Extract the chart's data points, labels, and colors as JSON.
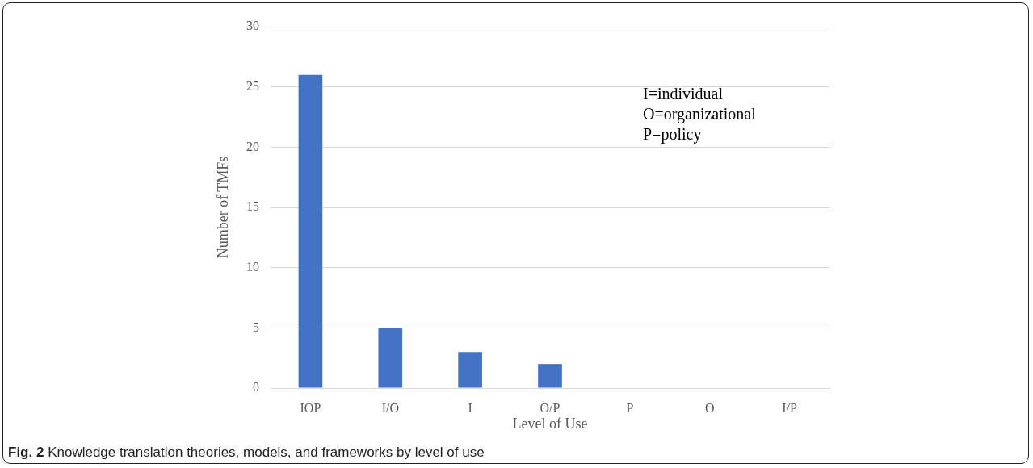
{
  "chart_data": {
    "type": "bar",
    "xlabel": "Level of Use",
    "ylabel": "Number of TMFs",
    "categories": [
      "IOP",
      "I/O",
      "I",
      "O/P",
      "P",
      "O",
      "I/P"
    ],
    "values": [
      26,
      5,
      3,
      2,
      0,
      0,
      0
    ],
    "color": "#4472c4",
    "ylim": [
      0,
      30
    ],
    "yticks": [
      0,
      5,
      10,
      15,
      20,
      25,
      30
    ],
    "grid": "y",
    "legend": false,
    "annotations": [
      "I=individual",
      "O=organizational",
      "P=policy",
      "Fig. 2",
      "Knowledge translation theories, models, and frameworks by level of use"
    ]
  }
}
